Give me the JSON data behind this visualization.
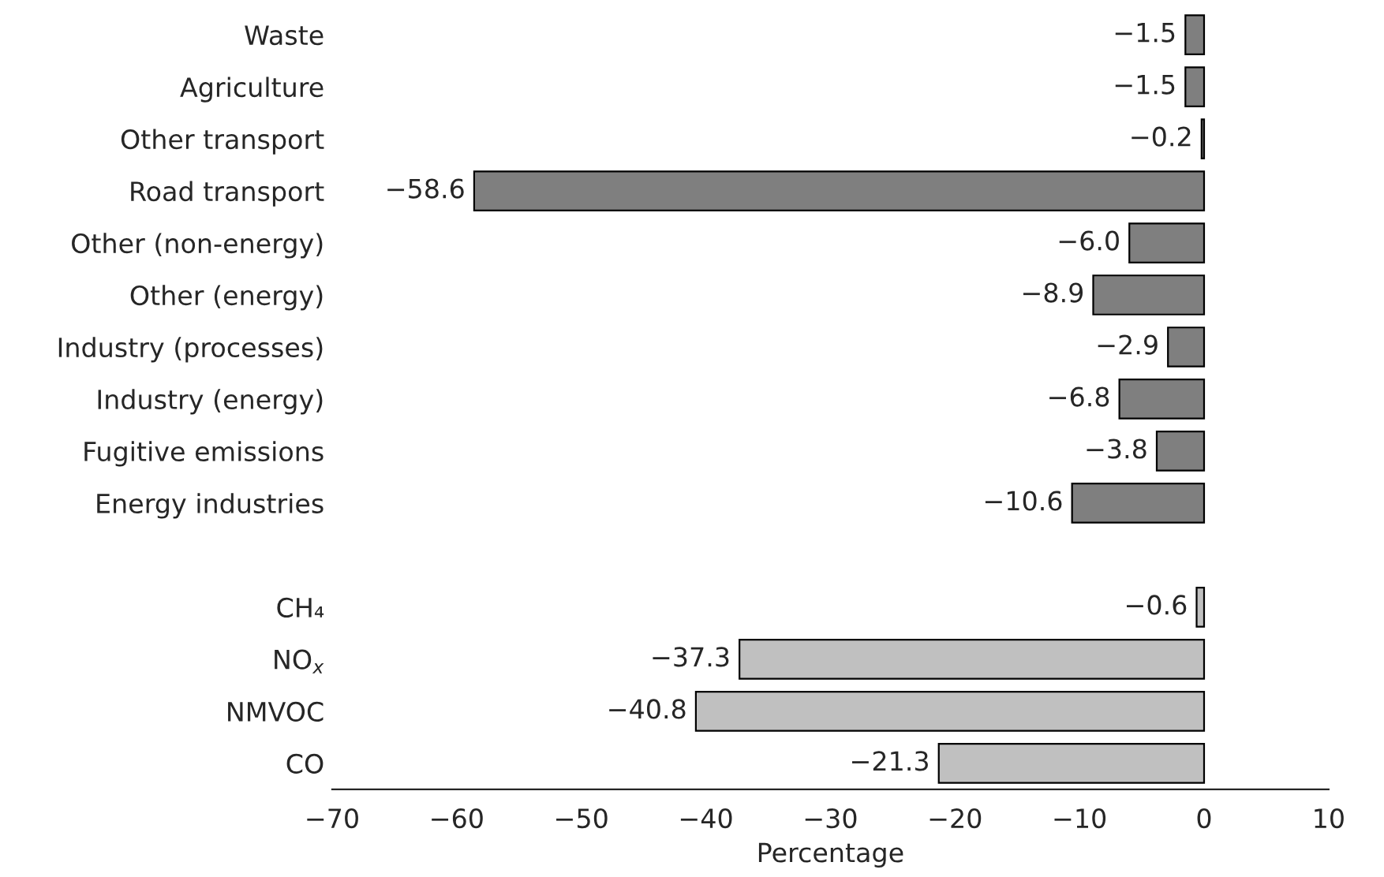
{
  "chart_data": {
    "type": "bar",
    "orientation": "horizontal",
    "xlabel": "Percentage",
    "categories": [
      "Waste",
      "Agriculture",
      "Other transport",
      "Road transport",
      "Other (non-energy)",
      "Other (energy)",
      "Industry (processes)",
      "Industry (energy)",
      "Fugitive emissions",
      "Energy industries",
      null,
      "CH₄",
      "NO$_{x}$",
      "NMVOC",
      "CO"
    ],
    "values": [
      -1.5,
      -1.5,
      -0.2,
      -58.6,
      -6.0,
      -8.9,
      -2.9,
      -6.8,
      -3.8,
      -10.6,
      null,
      -0.6,
      -37.3,
      -40.8,
      -21.3
    ],
    "value_labels": [
      "−1.5",
      "−1.5",
      "−0.2",
      "−58.6",
      "−6.0",
      "−8.9",
      "−2.9",
      "−6.8",
      "−3.8",
      "−10.6",
      null,
      "−0.6",
      "−37.3",
      "−40.8",
      "−21.3"
    ],
    "colors": [
      "#7f7f7f",
      "#7f7f7f",
      "#7f7f7f",
      "#7f7f7f",
      "#7f7f7f",
      "#7f7f7f",
      "#7f7f7f",
      "#7f7f7f",
      "#7f7f7f",
      "#7f7f7f",
      "#ffffff",
      "#c0c0c0",
      "#c0c0c0",
      "#c0c0c0",
      "#c0c0c0"
    ],
    "xlim": [
      -70,
      10
    ],
    "xticks": [
      {
        "value": -70,
        "label": "−70"
      },
      {
        "value": -60,
        "label": "−60"
      },
      {
        "value": -50,
        "label": "−50"
      },
      {
        "value": -40,
        "label": "−40"
      },
      {
        "value": -30,
        "label": "−30"
      },
      {
        "value": -20,
        "label": "−20"
      },
      {
        "value": -10,
        "label": "−10"
      },
      0,
      10
    ],
    "grid": false,
    "legend": false
  }
}
